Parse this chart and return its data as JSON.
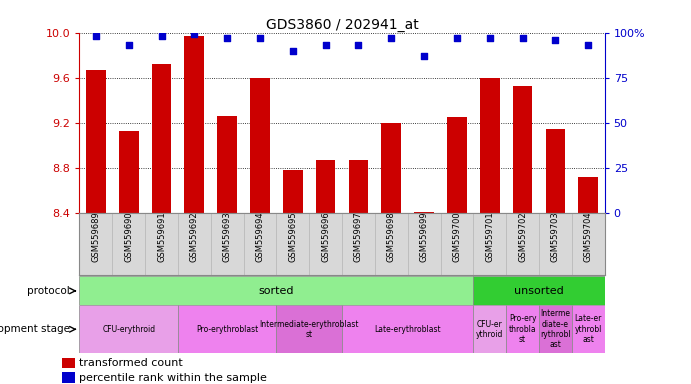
{
  "title": "GDS3860 / 202941_at",
  "samples": [
    "GSM559689",
    "GSM559690",
    "GSM559691",
    "GSM559692",
    "GSM559693",
    "GSM559694",
    "GSM559695",
    "GSM559696",
    "GSM559697",
    "GSM559698",
    "GSM559699",
    "GSM559700",
    "GSM559701",
    "GSM559702",
    "GSM559703",
    "GSM559704"
  ],
  "bar_values": [
    9.67,
    9.13,
    9.72,
    9.97,
    9.26,
    9.6,
    8.78,
    8.87,
    8.87,
    9.2,
    8.41,
    9.25,
    9.6,
    9.53,
    9.15,
    8.72
  ],
  "percentile_values": [
    98,
    93,
    98,
    99,
    97,
    97,
    90,
    93,
    93,
    97,
    87,
    97,
    97,
    97,
    96,
    93
  ],
  "ylim_left": [
    8.4,
    10.0
  ],
  "ylim_right": [
    0,
    100
  ],
  "yticks_left": [
    8.4,
    8.8,
    9.2,
    9.6,
    10.0
  ],
  "yticks_right": [
    0,
    25,
    50,
    75,
    100
  ],
  "bar_color": "#cc0000",
  "dot_color": "#0000cc",
  "sorted_count": 12,
  "protocol_colors": {
    "sorted": "#90EE90",
    "unsorted": "#32CD32"
  },
  "dev_stages_sorted": [
    {
      "label": "CFU-erythroid",
      "start": 0,
      "end": 3,
      "color": "#E8A0E8"
    },
    {
      "label": "Pro-erythroblast",
      "start": 3,
      "end": 6,
      "color": "#EE82EE"
    },
    {
      "label": "Intermediate-erythroblast\nst",
      "start": 6,
      "end": 8,
      "color": "#DA70D6"
    },
    {
      "label": "Late-erythroblast",
      "start": 8,
      "end": 12,
      "color": "#EE82EE"
    }
  ],
  "dev_stages_unsorted": [
    {
      "label": "CFU-er\nythroid",
      "start": 12,
      "end": 13,
      "color": "#E8A0E8"
    },
    {
      "label": "Pro-ery\nthrobla\nst",
      "start": 13,
      "end": 14,
      "color": "#EE82EE"
    },
    {
      "label": "Interme\ndiate-e\nrythrobl\nast",
      "start": 14,
      "end": 15,
      "color": "#DA70D6"
    },
    {
      "label": "Late-er\nythrobl\nast",
      "start": 15,
      "end": 16,
      "color": "#EE82EE"
    }
  ],
  "axis_color": "#cc0000",
  "right_axis_color": "#0000cc",
  "bg_color": "#ffffff",
  "xtick_bg": "#d8d8d8",
  "chart_bg": "#ffffff"
}
